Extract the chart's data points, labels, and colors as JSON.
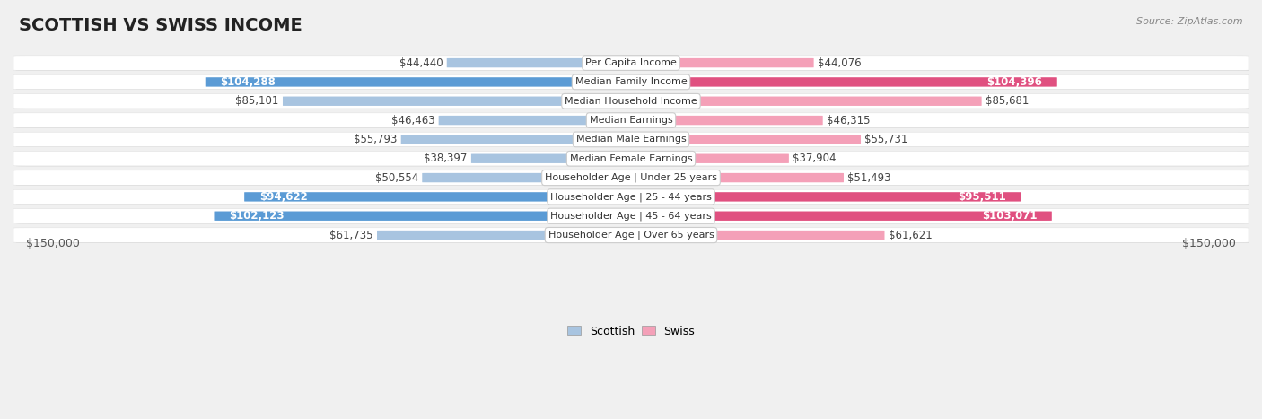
{
  "title": "SCOTTISH VS SWISS INCOME",
  "source": "Source: ZipAtlas.com",
  "categories": [
    "Per Capita Income",
    "Median Family Income",
    "Median Household Income",
    "Median Earnings",
    "Median Male Earnings",
    "Median Female Earnings",
    "Householder Age | Under 25 years",
    "Householder Age | 25 - 44 years",
    "Householder Age | 45 - 64 years",
    "Householder Age | Over 65 years"
  ],
  "scottish_values": [
    44440,
    104288,
    85101,
    46463,
    55793,
    38397,
    50554,
    94622,
    102123,
    61735
  ],
  "swiss_values": [
    44076,
    104396,
    85681,
    46315,
    55731,
    37904,
    51493,
    95511,
    103071,
    61621
  ],
  "scottish_labels": [
    "$44,440",
    "$104,288",
    "$85,101",
    "$46,463",
    "$55,793",
    "$38,397",
    "$50,554",
    "$94,622",
    "$102,123",
    "$61,735"
  ],
  "swiss_labels": [
    "$44,076",
    "$104,396",
    "$85,681",
    "$46,315",
    "$55,731",
    "$37,904",
    "$51,493",
    "$95,511",
    "$103,071",
    "$61,621"
  ],
  "scottish_color_light": "#a8c4e0",
  "scottish_color_dark": "#5b9bd5",
  "swiss_color_light": "#f4a0b8",
  "swiss_color_dark": "#e05080",
  "highlight_threshold": 90000,
  "max_value": 150000,
  "bg_color": "#f0f0f0",
  "row_bg": "#ffffff",
  "title_fontsize": 14,
  "label_fontsize": 8.5,
  "category_fontsize": 8.0,
  "legend_fontsize": 9,
  "axis_label_fontsize": 9
}
